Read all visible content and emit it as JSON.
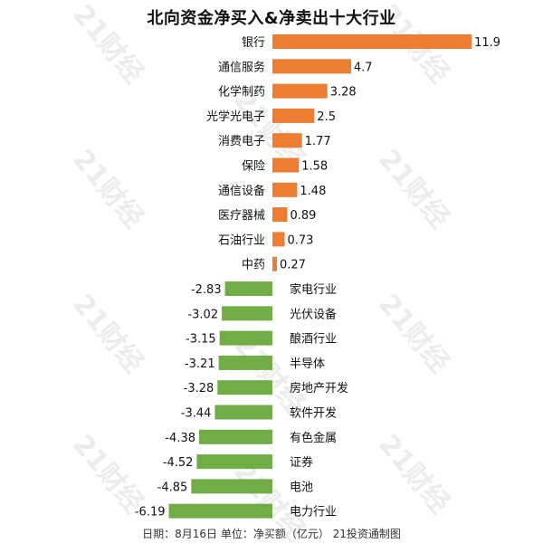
{
  "chart_data": {
    "type": "bar",
    "orientation": "horizontal",
    "title": "北向资金净买入&净卖出十大行业",
    "categories": [
      "银行",
      "通信服务",
      "化学制药",
      "光学光电子",
      "消费电子",
      "保险",
      "通信设备",
      "医疗器械",
      "石油行业",
      "中药",
      "家电行业",
      "光伏设备",
      "酿酒行业",
      "半导体",
      "房地产开发",
      "软件开发",
      "有色金属",
      "证券",
      "电池",
      "电力行业"
    ],
    "values": [
      11.9,
      4.7,
      3.28,
      2.5,
      1.77,
      1.58,
      1.48,
      0.89,
      0.73,
      0.27,
      -2.83,
      -3.02,
      -3.15,
      -3.21,
      -3.28,
      -3.44,
      -4.38,
      -4.52,
      -4.85,
      -6.19
    ],
    "value_labels": [
      "11.9",
      "4.7",
      "3.28",
      "2.5",
      "1.77",
      "1.58",
      "1.48",
      "0.89",
      "0.73",
      "0.27",
      "-2.83",
      "-3.02",
      "-3.15",
      "-3.21",
      "-3.28",
      "-3.44",
      "-4.38",
      "-4.52",
      "-4.85",
      "-6.19"
    ],
    "colors": {
      "positive": "#ed7d31",
      "negative": "#70ad47"
    },
    "grid": false,
    "legend": "none"
  },
  "footer": "日期：8月16日 单位：净买额（亿元） 21投资通制图",
  "watermark": "21财经"
}
